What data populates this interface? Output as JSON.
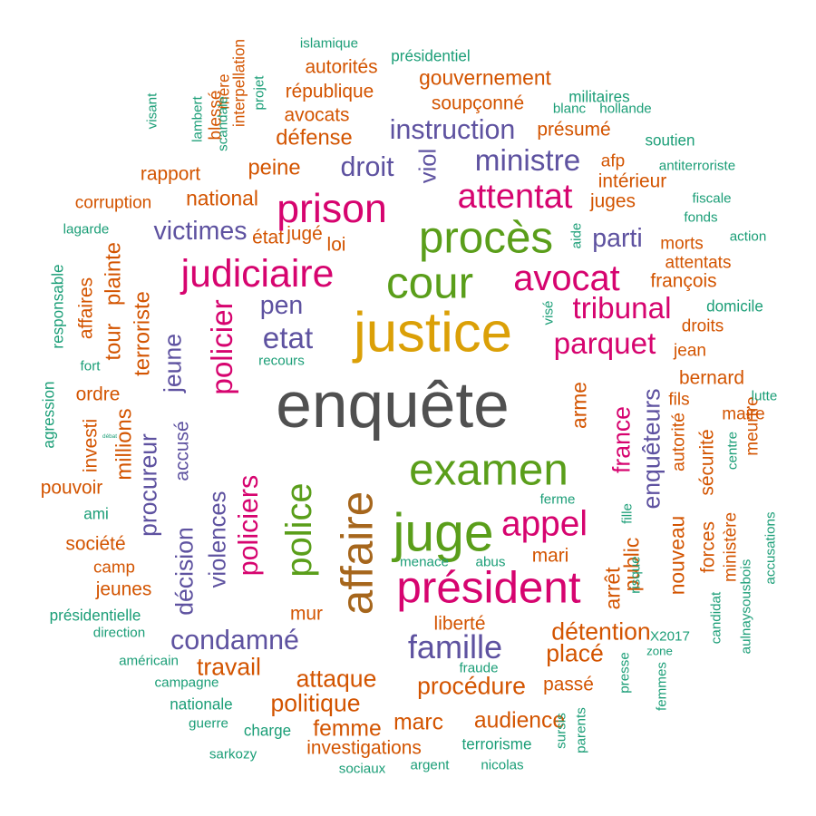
{
  "colors": {
    "dark_gray": "#505050",
    "brown": "#A6661C",
    "gold": "#DBA007",
    "green": "#5A9E1A",
    "magenta": "#D6046F",
    "purple": "#5E52A0",
    "orange": "#D35400",
    "teal": "#1B9E77"
  },
  "words": [
    {
      "text": "enquête",
      "color": "dark_gray",
      "vertical": false
    },
    {
      "text": "affaire",
      "color": "brown",
      "vertical": true
    },
    {
      "text": "justice",
      "color": "gold",
      "vertical": false
    },
    {
      "text": "examen",
      "color": "green",
      "vertical": false
    },
    {
      "text": "police",
      "color": "green",
      "vertical": true
    },
    {
      "text": "juge",
      "color": "green",
      "vertical": false
    },
    {
      "text": "cour",
      "color": "green",
      "vertical": false
    },
    {
      "text": "procès",
      "color": "green",
      "vertical": false
    },
    {
      "text": "président",
      "color": "magenta",
      "vertical": false
    },
    {
      "text": "judiciaire",
      "color": "magenta",
      "vertical": false
    },
    {
      "text": "prison",
      "color": "magenta",
      "vertical": false
    },
    {
      "text": "attentat",
      "color": "magenta",
      "vertical": false
    },
    {
      "text": "avocat",
      "color": "magenta",
      "vertical": false
    },
    {
      "text": "appel",
      "color": "magenta",
      "vertical": false
    },
    {
      "text": "parquet",
      "color": "magenta",
      "vertical": false
    },
    {
      "text": "tribunal",
      "color": "magenta",
      "vertical": false
    },
    {
      "text": "policier",
      "color": "magenta",
      "vertical": true
    },
    {
      "text": "policiers",
      "color": "magenta",
      "vertical": true
    },
    {
      "text": "france",
      "color": "magenta",
      "vertical": true
    },
    {
      "text": "ministre",
      "color": "purple",
      "vertical": false
    },
    {
      "text": "instruction",
      "color": "purple",
      "vertical": false
    },
    {
      "text": "famille",
      "color": "purple",
      "vertical": false
    },
    {
      "text": "etat",
      "color": "purple",
      "vertical": false
    },
    {
      "text": "condamné",
      "color": "purple",
      "vertical": false
    },
    {
      "text": "viol",
      "color": "purple",
      "vertical": true
    },
    {
      "text": "droit",
      "color": "purple",
      "vertical": false
    },
    {
      "text": "victimes",
      "color": "purple",
      "vertical": false
    },
    {
      "text": "parti",
      "color": "purple",
      "vertical": false
    },
    {
      "text": "pen",
      "color": "purple",
      "vertical": false
    },
    {
      "text": "jeune",
      "color": "purple",
      "vertical": true
    },
    {
      "text": "violences",
      "color": "purple",
      "vertical": true
    },
    {
      "text": "décision",
      "color": "purple",
      "vertical": true
    },
    {
      "text": "procureur",
      "color": "purple",
      "vertical": true
    },
    {
      "text": "enquêteurs",
      "color": "purple",
      "vertical": true
    },
    {
      "text": "accusé",
      "color": "purple",
      "vertical": true
    },
    {
      "text": "attaque",
      "color": "orange",
      "vertical": false
    },
    {
      "text": "procédure",
      "color": "orange",
      "vertical": false
    },
    {
      "text": "détention",
      "color": "orange",
      "vertical": false
    },
    {
      "text": "placé",
      "color": "orange",
      "vertical": false
    },
    {
      "text": "politique",
      "color": "orange",
      "vertical": false
    },
    {
      "text": "travail",
      "color": "orange",
      "vertical": false
    },
    {
      "text": "audience",
      "color": "orange",
      "vertical": false
    },
    {
      "text": "femme",
      "color": "orange",
      "vertical": false
    },
    {
      "text": "marc",
      "color": "orange",
      "vertical": false
    },
    {
      "text": "investigations",
      "color": "orange",
      "vertical": false
    },
    {
      "text": "passé",
      "color": "orange",
      "vertical": false
    },
    {
      "text": "mur",
      "color": "orange",
      "vertical": false
    },
    {
      "text": "liberté",
      "color": "orange",
      "vertical": false
    },
    {
      "text": "mari",
      "color": "orange",
      "vertical": false
    },
    {
      "text": "peine",
      "color": "orange",
      "vertical": false
    },
    {
      "text": "défense",
      "color": "orange",
      "vertical": false
    },
    {
      "text": "avocats",
      "color": "orange",
      "vertical": false
    },
    {
      "text": "national",
      "color": "orange",
      "vertical": false
    },
    {
      "text": "rapport",
      "color": "orange",
      "vertical": false
    },
    {
      "text": "corruption",
      "color": "orange",
      "vertical": false
    },
    {
      "text": "république",
      "color": "orange",
      "vertical": false
    },
    {
      "text": "autorités",
      "color": "orange",
      "vertical": false
    },
    {
      "text": "gouvernement",
      "color": "orange",
      "vertical": false
    },
    {
      "text": "soupçonné",
      "color": "orange",
      "vertical": false
    },
    {
      "text": "présumé",
      "color": "orange",
      "vertical": false
    },
    {
      "text": "afp",
      "color": "orange",
      "vertical": false
    },
    {
      "text": "intérieur",
      "color": "orange",
      "vertical": false
    },
    {
      "text": "juges",
      "color": "orange",
      "vertical": false
    },
    {
      "text": "morts",
      "color": "orange",
      "vertical": false
    },
    {
      "text": "attentats",
      "color": "orange",
      "vertical": false
    },
    {
      "text": "françois",
      "color": "orange",
      "vertical": false
    },
    {
      "text": "droits",
      "color": "orange",
      "vertical": false
    },
    {
      "text": "jean",
      "color": "orange",
      "vertical": false
    },
    {
      "text": "bernard",
      "color": "orange",
      "vertical": false
    },
    {
      "text": "fils",
      "color": "orange",
      "vertical": false
    },
    {
      "text": "maire",
      "color": "orange",
      "vertical": false
    },
    {
      "text": "état",
      "color": "orange",
      "vertical": false
    },
    {
      "text": "jugé",
      "color": "orange",
      "vertical": false
    },
    {
      "text": "loi",
      "color": "orange",
      "vertical": false
    },
    {
      "text": "pouvoir",
      "color": "orange",
      "vertical": false
    },
    {
      "text": "société",
      "color": "orange",
      "vertical": false
    },
    {
      "text": "camp",
      "color": "orange",
      "vertical": false
    },
    {
      "text": "jeunes",
      "color": "orange",
      "vertical": false
    },
    {
      "text": "ordre",
      "color": "orange",
      "vertical": false
    },
    {
      "text": "terroriste",
      "color": "orange",
      "vertical": true
    },
    {
      "text": "tour",
      "color": "orange",
      "vertical": true
    },
    {
      "text": "plainte",
      "color": "orange",
      "vertical": true
    },
    {
      "text": "affaires",
      "color": "orange",
      "vertical": true
    },
    {
      "text": "millions",
      "color": "orange",
      "vertical": true
    },
    {
      "text": "investi",
      "color": "orange",
      "vertical": true
    },
    {
      "text": "arme",
      "color": "orange",
      "vertical": true
    },
    {
      "text": "arrêt",
      "color": "orange",
      "vertical": true
    },
    {
      "text": "public",
      "color": "orange",
      "vertical": true
    },
    {
      "text": "nouveau",
      "color": "orange",
      "vertical": true
    },
    {
      "text": "sécurité",
      "color": "orange",
      "vertical": true
    },
    {
      "text": "autorité",
      "color": "orange",
      "vertical": true
    },
    {
      "text": "forces",
      "color": "orange",
      "vertical": true
    },
    {
      "text": "ministère",
      "color": "orange",
      "vertical": true
    },
    {
      "text": "meurtre",
      "color": "orange",
      "vertical": true
    },
    {
      "text": "blessé",
      "color": "orange",
      "vertical": true
    },
    {
      "text": "mère",
      "color": "orange",
      "vertical": true
    },
    {
      "text": "interpellation",
      "color": "orange",
      "vertical": true
    },
    {
      "text": "islamique",
      "color": "teal",
      "vertical": false
    },
    {
      "text": "présidentiel",
      "color": "teal",
      "vertical": false
    },
    {
      "text": "militaires",
      "color": "teal",
      "vertical": false
    },
    {
      "text": "blanc",
      "color": "teal",
      "vertical": false
    },
    {
      "text": "hollande",
      "color": "teal",
      "vertical": false
    },
    {
      "text": "soutien",
      "color": "teal",
      "vertical": false
    },
    {
      "text": "antiterroriste",
      "color": "teal",
      "vertical": false
    },
    {
      "text": "fiscale",
      "color": "teal",
      "vertical": false
    },
    {
      "text": "fonds",
      "color": "teal",
      "vertical": false
    },
    {
      "text": "action",
      "color": "teal",
      "vertical": false
    },
    {
      "text": "domicile",
      "color": "teal",
      "vertical": false
    },
    {
      "text": "lutte",
      "color": "teal",
      "vertical": false
    },
    {
      "text": "lagarde",
      "color": "teal",
      "vertical": false
    },
    {
      "text": "fort",
      "color": "teal",
      "vertical": false
    },
    {
      "text": "recours",
      "color": "teal",
      "vertical": false
    },
    {
      "text": "débat",
      "color": "teal",
      "vertical": false
    },
    {
      "text": "ami",
      "color": "teal",
      "vertical": false
    },
    {
      "text": "présidentielle",
      "color": "teal",
      "vertical": false
    },
    {
      "text": "direction",
      "color": "teal",
      "vertical": false
    },
    {
      "text": "américain",
      "color": "teal",
      "vertical": false
    },
    {
      "text": "campagne",
      "color": "teal",
      "vertical": false
    },
    {
      "text": "nationale",
      "color": "teal",
      "vertical": false
    },
    {
      "text": "guerre",
      "color": "teal",
      "vertical": false
    },
    {
      "text": "charge",
      "color": "teal",
      "vertical": false
    },
    {
      "text": "sarkozy",
      "color": "teal",
      "vertical": false
    },
    {
      "text": "terrorisme",
      "color": "teal",
      "vertical": false
    },
    {
      "text": "sociaux",
      "color": "teal",
      "vertical": false
    },
    {
      "text": "argent",
      "color": "teal",
      "vertical": false
    },
    {
      "text": "nicolas",
      "color": "teal",
      "vertical": false
    },
    {
      "text": "fraude",
      "color": "teal",
      "vertical": false
    },
    {
      "text": "menace",
      "color": "teal",
      "vertical": false
    },
    {
      "text": "abus",
      "color": "teal",
      "vertical": false
    },
    {
      "text": "ferme",
      "color": "teal",
      "vertical": false
    },
    {
      "text": "X2017",
      "color": "teal",
      "vertical": false
    },
    {
      "text": "zone",
      "color": "teal",
      "vertical": false
    },
    {
      "text": "centre",
      "color": "teal",
      "vertical": true
    },
    {
      "text": "visant",
      "color": "teal",
      "vertical": true
    },
    {
      "text": "lambert",
      "color": "teal",
      "vertical": true
    },
    {
      "text": "scandale",
      "color": "teal",
      "vertical": true
    },
    {
      "text": "projet",
      "color": "teal",
      "vertical": true
    },
    {
      "text": "aide",
      "color": "teal",
      "vertical": true
    },
    {
      "text": "visé",
      "color": "teal",
      "vertical": true
    },
    {
      "text": "responsable",
      "color": "teal",
      "vertical": true
    },
    {
      "text": "agression",
      "color": "teal",
      "vertical": true
    },
    {
      "text": "fille",
      "color": "teal",
      "vertical": true
    },
    {
      "text": "risque",
      "color": "teal",
      "vertical": true
    },
    {
      "text": "presse",
      "color": "teal",
      "vertical": true
    },
    {
      "text": "sursis",
      "color": "teal",
      "vertical": true
    },
    {
      "text": "parents",
      "color": "teal",
      "vertical": true
    },
    {
      "text": "femmes",
      "color": "teal",
      "vertical": true
    },
    {
      "text": "candidat",
      "color": "teal",
      "vertical": true
    },
    {
      "text": "aulnaysousbois",
      "color": "teal",
      "vertical": true
    },
    {
      "text": "accusations",
      "color": "teal",
      "vertical": true
    }
  ]
}
